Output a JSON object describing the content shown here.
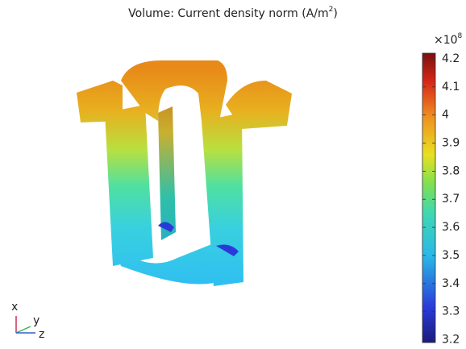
{
  "title": {
    "text": "Volume: Current density norm (A/m",
    "superscript": "2",
    "suffix": ")"
  },
  "colorbar": {
    "multiplier_base": "×10",
    "multiplier_exponent": "8",
    "range": [
      3.19,
      4.22
    ],
    "ticks": [
      3.2,
      3.3,
      3.4,
      3.5,
      3.6,
      3.7,
      3.8,
      3.9,
      4,
      4.1,
      4.2
    ]
  },
  "axis_triad": {
    "x": "x",
    "y": "y",
    "z": "z"
  }
}
